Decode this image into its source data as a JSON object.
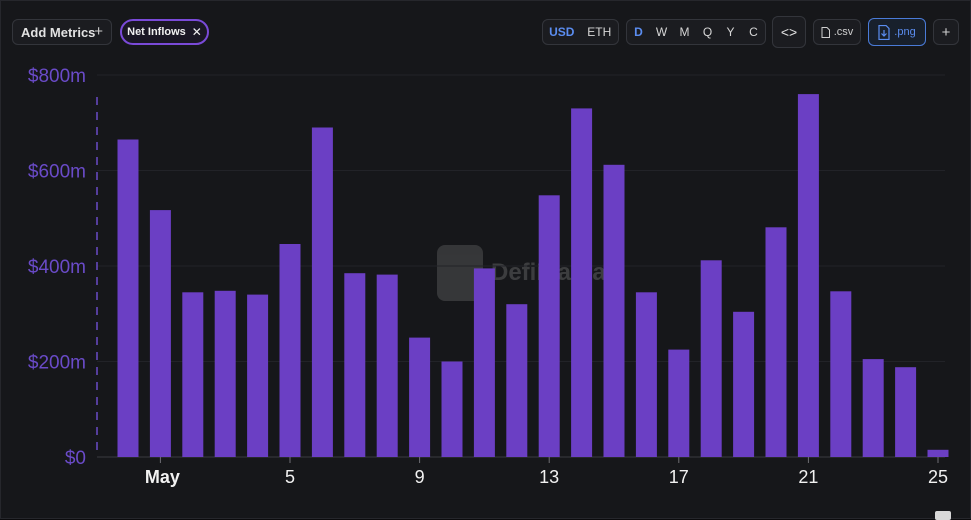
{
  "toolbar": {
    "add_metrics_label": "Add Metrics",
    "add_icon": "plus-icon",
    "metric_chip_label": "Net Inflows",
    "metric_chip_remove": "✕",
    "currency_options": [
      "USD",
      "ETH"
    ],
    "currency_selected": "USD",
    "period_options": [
      "D",
      "W",
      "M",
      "Q",
      "Y",
      "C"
    ],
    "period_selected": "D",
    "embed_icon": "code-embed-icon",
    "embed_label": "<>",
    "csv_label": ".csv",
    "png_label": ".png",
    "plus_label": "+"
  },
  "watermark": {
    "text": "DefiLlama"
  },
  "colors": {
    "bar": "#6b3fc4",
    "axis_label": "#6a4bc8",
    "accent_blue": "#5b8df0",
    "chip_border": "#7a4ad8"
  },
  "chart_data": {
    "type": "bar",
    "title": "",
    "xlabel": "",
    "ylabel": "",
    "ylim": [
      0,
      800
    ],
    "y_unit": "m",
    "y_ticks": [
      {
        "value": 0,
        "label": "$0"
      },
      {
        "value": 200,
        "label": "$200m"
      },
      {
        "value": 400,
        "label": "$400m"
      },
      {
        "value": 600,
        "label": "$600m"
      },
      {
        "value": 800,
        "label": "$800m"
      }
    ],
    "x_ticks": [
      {
        "day": 1,
        "label": "May",
        "bold": true
      },
      {
        "day": 5,
        "label": "5"
      },
      {
        "day": 9,
        "label": "9"
      },
      {
        "day": 13,
        "label": "13"
      },
      {
        "day": 17,
        "label": "17"
      },
      {
        "day": 21,
        "label": "21"
      },
      {
        "day": 25,
        "label": "25"
      }
    ],
    "series": [
      {
        "x": [
          30,
          1,
          2,
          3,
          4,
          5,
          6,
          7,
          8,
          9,
          10,
          11,
          12,
          13,
          14,
          15,
          16,
          17,
          18,
          19,
          20,
          21,
          22,
          23,
          24,
          25
        ],
        "values": [
          665,
          517,
          345,
          348,
          340,
          446,
          690,
          385,
          382,
          250,
          200,
          395,
          320,
          548,
          730,
          612,
          345,
          225,
          412,
          304,
          481,
          760,
          347,
          205,
          188,
          15
        ]
      }
    ]
  }
}
